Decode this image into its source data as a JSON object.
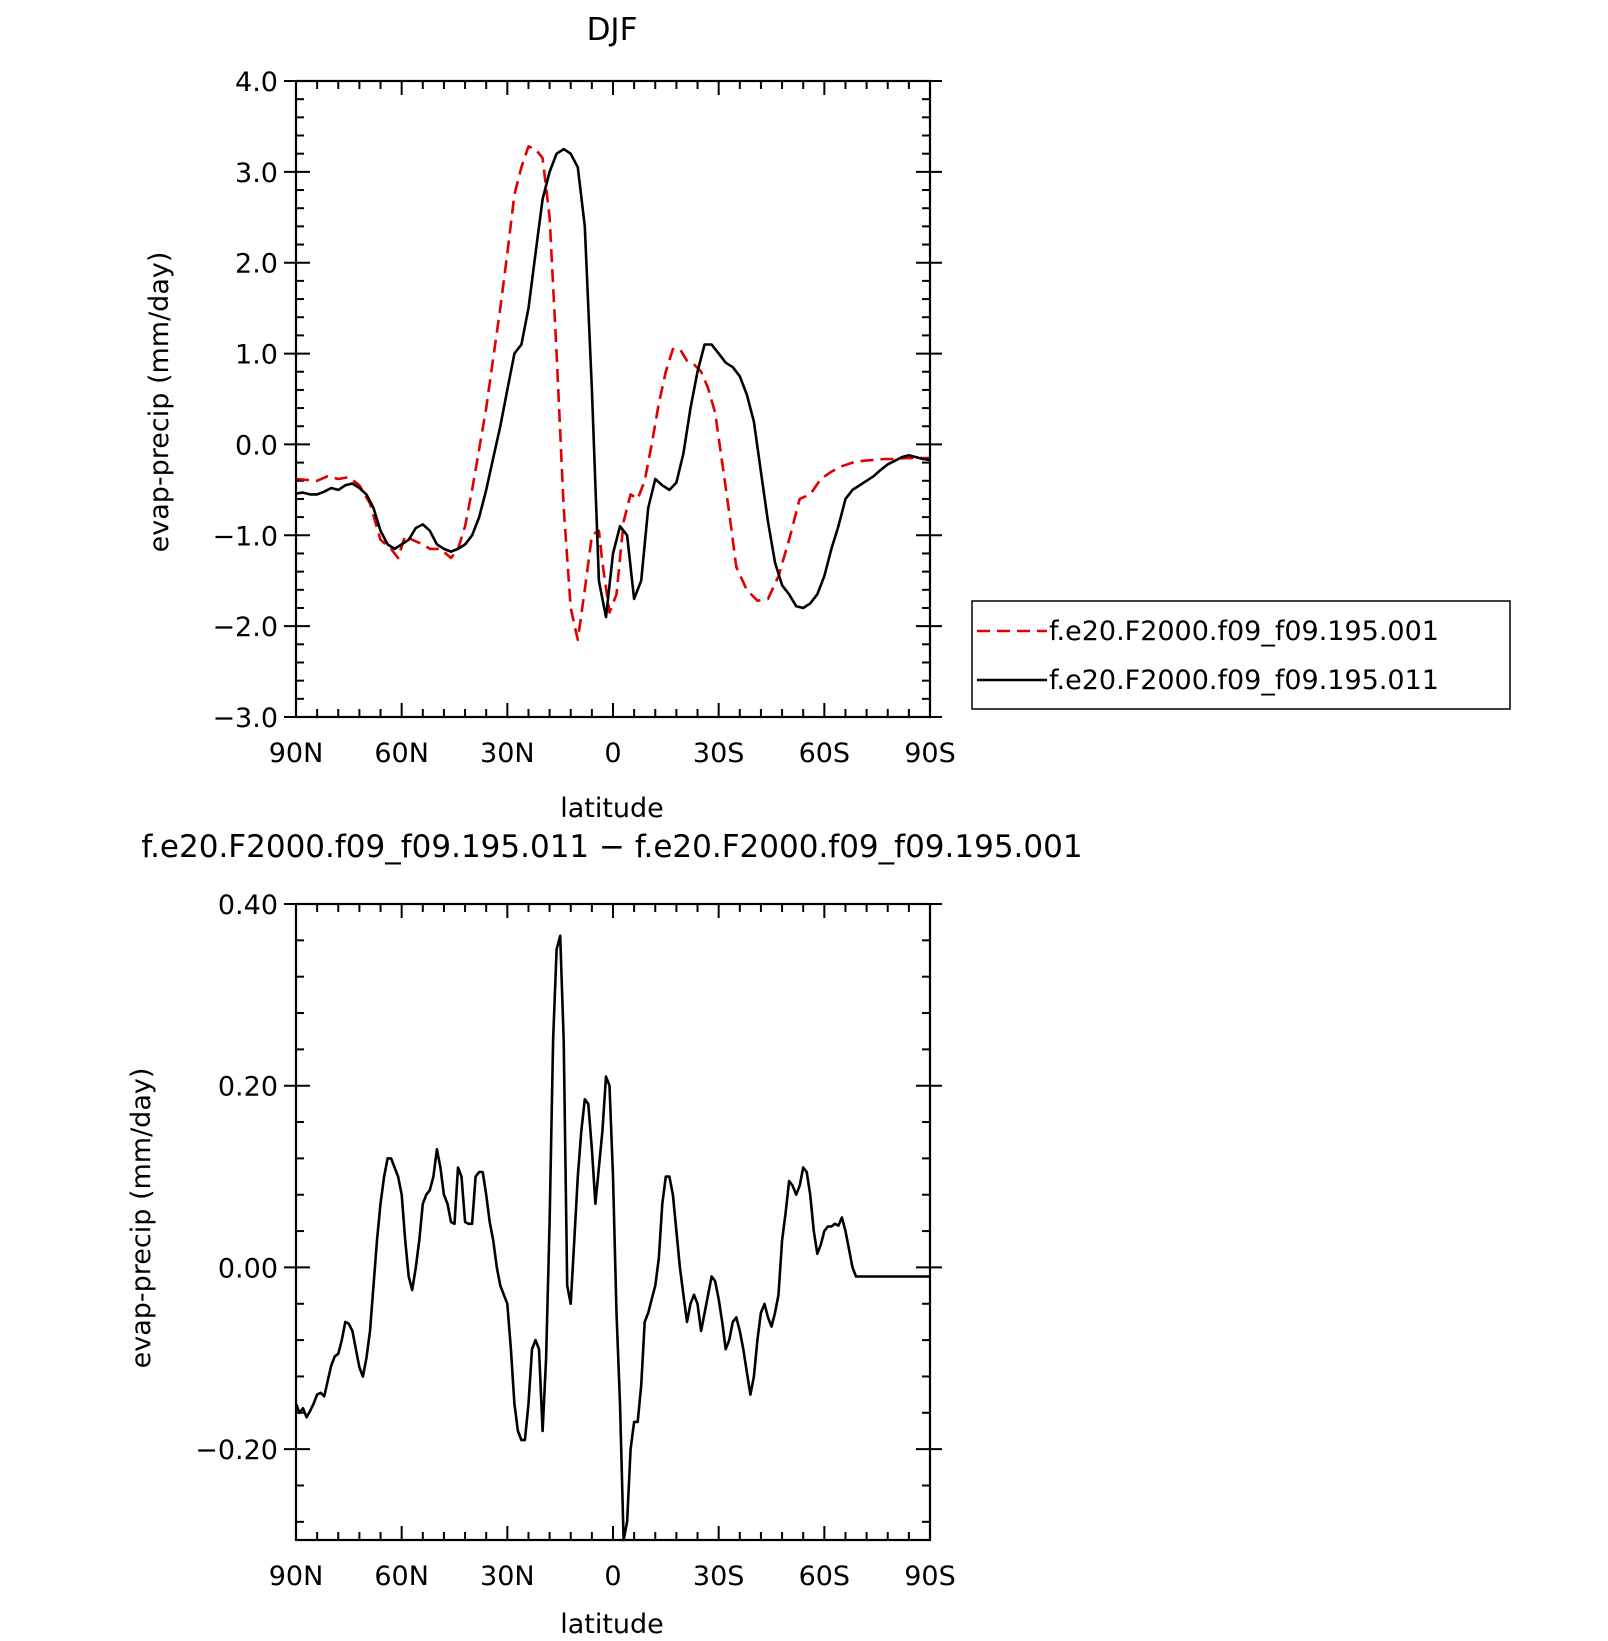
{
  "colors": {
    "red": "#e00000",
    "black": "#000000"
  },
  "chart_data": [
    {
      "type": "line",
      "title": "DJF",
      "xlabel": "latitude",
      "ylabel": "evap-precip (mm/day)",
      "xlim": [
        90,
        -90
      ],
      "ylim": [
        -3.0,
        4.0
      ],
      "xticks": [
        90,
        60,
        30,
        0,
        -30,
        -60,
        -90
      ],
      "xtick_labels": [
        "90N",
        "60N",
        "30N",
        "0",
        "30S",
        "60S",
        "90S"
      ],
      "yticks": [
        4.0,
        3.0,
        2.0,
        1.0,
        0.0,
        -1.0,
        -2.0,
        -3.0
      ],
      "ytick_labels": [
        "4.0",
        "3.0",
        "2.0",
        "1.0",
        "0.0",
        "−1.0",
        "−2.0",
        "−3.0"
      ],
      "legend_position": "right",
      "series": [
        {
          "name": "f.e20.F2000.f09_f09.195.001",
          "color": "#e00000",
          "dash": "dashed",
          "x": [
            90,
            84,
            81,
            78,
            75,
            72,
            69,
            66,
            63,
            61,
            59,
            57,
            54,
            52,
            49,
            46,
            44,
            42,
            40,
            38,
            36,
            34,
            32,
            30,
            28,
            26,
            24,
            22,
            20,
            18,
            16,
            14,
            12,
            10,
            8,
            6,
            4,
            3,
            1,
            -1,
            -3,
            -5,
            -7,
            -9,
            -11,
            -13,
            -15,
            -17,
            -19,
            -21,
            -23,
            -25,
            -27,
            -29,
            -31,
            -33,
            -35,
            -38,
            -41,
            -44,
            -47,
            -50,
            -53,
            -56,
            -59,
            -62,
            -65,
            -68,
            -71,
            -74,
            -77,
            -80,
            -83,
            -86,
            -90
          ],
          "y": [
            -0.38,
            -0.4,
            -0.35,
            -0.38,
            -0.36,
            -0.45,
            -0.65,
            -1.05,
            -1.15,
            -1.25,
            -1.0,
            -1.05,
            -1.1,
            -1.15,
            -1.15,
            -1.25,
            -1.15,
            -0.9,
            -0.5,
            -0.05,
            0.4,
            0.95,
            1.5,
            2.1,
            2.75,
            3.05,
            3.28,
            3.25,
            3.15,
            2.5,
            1.0,
            -0.7,
            -1.8,
            -2.15,
            -1.6,
            -1.0,
            -0.95,
            -1.3,
            -1.85,
            -1.65,
            -0.85,
            -0.55,
            -0.6,
            -0.4,
            0.0,
            0.45,
            0.8,
            1.05,
            1.05,
            0.92,
            0.88,
            0.8,
            0.62,
            0.35,
            -0.2,
            -0.75,
            -1.35,
            -1.6,
            -1.72,
            -1.7,
            -1.45,
            -1.05,
            -0.6,
            -0.55,
            -0.38,
            -0.3,
            -0.24,
            -0.2,
            -0.18,
            -0.17,
            -0.16,
            -0.16,
            -0.15,
            -0.15,
            -0.15
          ]
        },
        {
          "name": "f.e20.F2000.f09_f09.195.011",
          "color": "#000000",
          "dash": "solid",
          "x": [
            90,
            88,
            86,
            84,
            82,
            80,
            78,
            76,
            74,
            72,
            70,
            68,
            66,
            64,
            62,
            60,
            58,
            56,
            54,
            52,
            50,
            48,
            46,
            44,
            42,
            40,
            38,
            36,
            34,
            32,
            30,
            28,
            26,
            24,
            22,
            20,
            18,
            16,
            14,
            12,
            10,
            8,
            6,
            4,
            2,
            0,
            -2,
            -4,
            -6,
            -8,
            -10,
            -12,
            -14,
            -16,
            -18,
            -20,
            -22,
            -24,
            -26,
            -28,
            -30,
            -32,
            -34,
            -36,
            -38,
            -40,
            -42,
            -44,
            -46,
            -48,
            -50,
            -52,
            -54,
            -56,
            -58,
            -60,
            -62,
            -64,
            -66,
            -68,
            -70,
            -72,
            -74,
            -76,
            -78,
            -80,
            -82,
            -84,
            -86,
            -88,
            -90
          ],
          "y": [
            -0.54,
            -0.53,
            -0.55,
            -0.55,
            -0.52,
            -0.48,
            -0.5,
            -0.45,
            -0.43,
            -0.48,
            -0.55,
            -0.7,
            -0.95,
            -1.1,
            -1.15,
            -1.1,
            -1.05,
            -0.92,
            -0.88,
            -0.95,
            -1.1,
            -1.15,
            -1.18,
            -1.15,
            -1.1,
            -1.0,
            -0.8,
            -0.5,
            -0.15,
            0.2,
            0.6,
            1.0,
            1.1,
            1.5,
            2.1,
            2.7,
            3.0,
            3.2,
            3.25,
            3.2,
            3.05,
            2.4,
            0.6,
            -1.5,
            -1.9,
            -1.2,
            -0.9,
            -1.0,
            -1.7,
            -1.5,
            -0.7,
            -0.38,
            -0.45,
            -0.5,
            -0.42,
            -0.1,
            0.4,
            0.8,
            1.1,
            1.1,
            1.0,
            0.9,
            0.85,
            0.75,
            0.55,
            0.25,
            -0.3,
            -0.85,
            -1.3,
            -1.55,
            -1.65,
            -1.78,
            -1.8,
            -1.75,
            -1.65,
            -1.45,
            -1.15,
            -0.9,
            -0.6,
            -0.5,
            -0.45,
            -0.4,
            -0.35,
            -0.28,
            -0.22,
            -0.18,
            -0.14,
            -0.12,
            -0.14,
            -0.16,
            -0.17
          ]
        }
      ]
    },
    {
      "type": "line",
      "title": "f.e20.F2000.f09_f09.195.011 − f.e20.F2000.f09_f09.195.001",
      "xlabel": "latitude",
      "ylabel": "evap-precip (mm/day)",
      "xlim": [
        90,
        -90
      ],
      "ylim": [
        -0.3,
        0.4
      ],
      "xticks": [
        90,
        60,
        30,
        0,
        -30,
        -60,
        -90
      ],
      "xtick_labels": [
        "90N",
        "60N",
        "30N",
        "0",
        "30S",
        "60S",
        "90S"
      ],
      "yticks": [
        0.4,
        0.2,
        0.0,
        -0.2
      ],
      "ytick_labels": [
        "0.40",
        "0.20",
        "0.00",
        "−0.20"
      ],
      "series": [
        {
          "name": "",
          "color": "#000000",
          "dash": "solid",
          "x": [
            90,
            89,
            88,
            87,
            86,
            85,
            84,
            83,
            82,
            81,
            80,
            79,
            78,
            77,
            76,
            75,
            74,
            73,
            72,
            71,
            70,
            69,
            68,
            67,
            66,
            65,
            64,
            63,
            62,
            61,
            60,
            59,
            58,
            57,
            56,
            55,
            54,
            53,
            52,
            51,
            50,
            49,
            48,
            47,
            46,
            45,
            44,
            43,
            42,
            41,
            40,
            39,
            38,
            37,
            36,
            35,
            34,
            33,
            32,
            31,
            30,
            29,
            28,
            27,
            26,
            25,
            24,
            23,
            22,
            21,
            20,
            19,
            18,
            17,
            16,
            15,
            14,
            13,
            12,
            11,
            10,
            9,
            8,
            7,
            6,
            5,
            4,
            3,
            2,
            1,
            0,
            -1,
            -2,
            -3,
            -4,
            -5,
            -6,
            -7,
            -8,
            -9,
            -10,
            -11,
            -12,
            -13,
            -14,
            -15,
            -16,
            -17,
            -18,
            -19,
            -20,
            -21,
            -22,
            -23,
            -24,
            -25,
            -26,
            -27,
            -28,
            -29,
            -30,
            -31,
            -32,
            -33,
            -34,
            -35,
            -36,
            -37,
            -38,
            -39,
            -40,
            -41,
            -42,
            -43,
            -44,
            -45,
            -46,
            -47,
            -48,
            -49,
            -50,
            -51,
            -52,
            -53,
            -54,
            -55,
            -56,
            -57,
            -58,
            -59,
            -60,
            -61,
            -62,
            -63,
            -64,
            -65,
            -66,
            -67,
            -68,
            -69,
            -70,
            -71,
            -72,
            -73,
            -74,
            -75,
            -76,
            -77,
            -78,
            -79,
            -80,
            -81,
            -82,
            -83,
            -84,
            -85,
            -86,
            -87,
            -88,
            -89,
            -90
          ],
          "y": [
            -0.15,
            -0.16,
            -0.155,
            -0.165,
            -0.158,
            -0.15,
            -0.14,
            -0.138,
            -0.142,
            -0.125,
            -0.108,
            -0.098,
            -0.095,
            -0.08,
            -0.06,
            -0.062,
            -0.07,
            -0.09,
            -0.11,
            -0.12,
            -0.1,
            -0.07,
            -0.02,
            0.03,
            0.07,
            0.1,
            0.12,
            0.12,
            0.11,
            0.1,
            0.08,
            0.03,
            -0.01,
            -0.025,
            0.0,
            0.03,
            0.07,
            0.08,
            0.085,
            0.1,
            0.13,
            0.11,
            0.08,
            0.07,
            0.05,
            0.048,
            0.11,
            0.1,
            0.05,
            0.048,
            0.048,
            0.1,
            0.105,
            0.105,
            0.08,
            0.05,
            0.03,
            0.0,
            -0.02,
            -0.03,
            -0.04,
            -0.09,
            -0.15,
            -0.18,
            -0.19,
            -0.19,
            -0.15,
            -0.09,
            -0.08,
            -0.09,
            -0.18,
            -0.1,
            0.05,
            0.25,
            0.35,
            0.365,
            0.25,
            -0.02,
            -0.04,
            0.03,
            0.1,
            0.15,
            0.185,
            0.18,
            0.13,
            0.07,
            0.11,
            0.15,
            0.21,
            0.2,
            0.1,
            -0.05,
            -0.15,
            -0.3,
            -0.28,
            -0.2,
            -0.17,
            -0.17,
            -0.13,
            -0.06,
            -0.05,
            -0.035,
            -0.02,
            0.01,
            0.07,
            0.1,
            0.1,
            0.08,
            0.04,
            0.0,
            -0.03,
            -0.06,
            -0.04,
            -0.03,
            -0.04,
            -0.07,
            -0.05,
            -0.03,
            -0.01,
            -0.015,
            -0.035,
            -0.06,
            -0.09,
            -0.08,
            -0.06,
            -0.055,
            -0.07,
            -0.09,
            -0.115,
            -0.14,
            -0.12,
            -0.08,
            -0.05,
            -0.04,
            -0.055,
            -0.065,
            -0.05,
            -0.03,
            0.03,
            0.06,
            0.095,
            0.09,
            0.08,
            0.09,
            0.11,
            0.105,
            0.08,
            0.04,
            0.015,
            0.025,
            0.04,
            0.045,
            0.045,
            0.048,
            0.046,
            0.055,
            0.04,
            0.02,
            0.0,
            -0.01,
            -0.01,
            -0.01,
            -0.01,
            -0.01,
            -0.01,
            -0.01,
            -0.01,
            -0.01,
            -0.01,
            -0.01,
            -0.01,
            -0.01,
            -0.01,
            -0.01,
            -0.01,
            -0.01,
            -0.01,
            -0.01,
            -0.01,
            -0.01,
            -0.01
          ]
        }
      ]
    }
  ]
}
